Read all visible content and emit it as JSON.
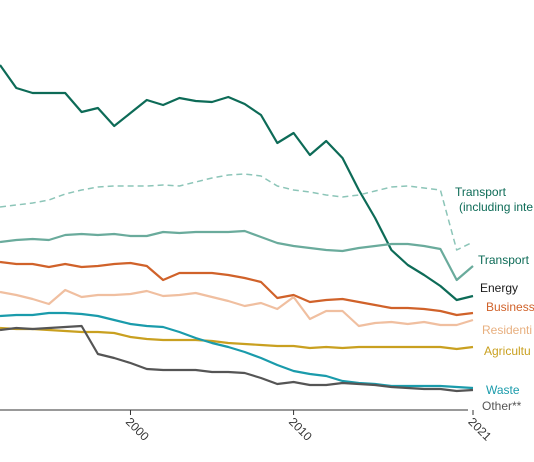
{
  "chart_data": {
    "type": "line",
    "x": [
      1992,
      1993,
      1994,
      1995,
      1996,
      1997,
      1998,
      1999,
      2000,
      2001,
      2002,
      2003,
      2004,
      2005,
      2006,
      2007,
      2008,
      2009,
      2010,
      2011,
      2012,
      2013,
      2014,
      2015,
      2016,
      2017,
      2018,
      2019,
      2020,
      2021
    ],
    "xlim": [
      1992,
      2021
    ],
    "xticks": [
      2000,
      2010,
      2021
    ],
    "ylim": [
      0,
      410
    ],
    "series": [
      {
        "name": "Energy",
        "color": "#0d6b57",
        "label_color": "#1a1a1a",
        "values": [
          345,
          322,
          317,
          317,
          317,
          298,
          302,
          284,
          297,
          310,
          305,
          312,
          309,
          308,
          313,
          306,
          295,
          267,
          277,
          255,
          269,
          252,
          220,
          192,
          160,
          145,
          135,
          124,
          110,
          114
        ]
      },
      {
        "name": [
          "Transport",
          "(including inte"
        ],
        "color": "#8cc5b8",
        "label_color": "#0d6b57",
        "dashed": true,
        "values": [
          203,
          205,
          207,
          210,
          216,
          220,
          223,
          224,
          224,
          224,
          225,
          224,
          228,
          232,
          235,
          236,
          234,
          224,
          220,
          218,
          215,
          213,
          215,
          219,
          223,
          224,
          222,
          220,
          160,
          168
        ]
      },
      {
        "name": "Transport",
        "color": "#6aab9c",
        "label_color": "#0d6b57",
        "values": [
          168,
          170,
          171,
          170,
          175,
          176,
          175,
          176,
          174,
          174,
          178,
          177,
          178,
          178,
          178,
          179,
          173,
          167,
          164,
          162,
          160,
          159,
          162,
          164,
          166,
          166,
          164,
          161,
          130,
          144
        ]
      },
      {
        "name": "Business",
        "color": "#d0622a",
        "label_color": "#d0622a",
        "values": [
          148,
          146,
          146,
          143,
          146,
          143,
          144,
          146,
          147,
          144,
          130,
          137,
          137,
          137,
          135,
          132,
          128,
          112,
          115,
          108,
          110,
          111,
          108,
          105,
          102,
          102,
          101,
          99,
          95,
          97
        ]
      },
      {
        "name": "Residenti",
        "color": "#f0bfa0",
        "label_color": "#e8b080",
        "values": [
          118,
          115,
          111,
          106,
          120,
          113,
          115,
          115,
          116,
          119,
          114,
          115,
          117,
          113,
          109,
          104,
          107,
          101,
          113,
          91,
          99,
          99,
          84,
          87,
          88,
          86,
          88,
          85,
          85,
          90
        ]
      },
      {
        "name": "Agricultu",
        "color": "#c9a020",
        "label_color": "#c9a020",
        "values": [
          82,
          81,
          81,
          80,
          79,
          78,
          78,
          77,
          73,
          71,
          70,
          70,
          70,
          69,
          67,
          66,
          65,
          64,
          64,
          62,
          63,
          62,
          63,
          63,
          63,
          63,
          63,
          63,
          61,
          63
        ]
      },
      {
        "name": "Waste",
        "color": "#1a9bab",
        "label_color": "#1a9bab",
        "values": [
          94,
          95,
          95,
          97,
          97,
          96,
          94,
          90,
          86,
          84,
          83,
          78,
          72,
          67,
          63,
          58,
          52,
          45,
          39,
          36,
          34,
          29,
          27,
          26,
          24,
          24,
          24,
          24,
          23,
          22
        ]
      },
      {
        "name": "Other**",
        "color": "#555555",
        "label_color": "#555555",
        "values": [
          80,
          82,
          81,
          82,
          83,
          84,
          56,
          52,
          47,
          41,
          40,
          40,
          40,
          38,
          38,
          37,
          32,
          26,
          28,
          25,
          25,
          27,
          26,
          25,
          23,
          22,
          21,
          21,
          19,
          20
        ]
      }
    ]
  }
}
